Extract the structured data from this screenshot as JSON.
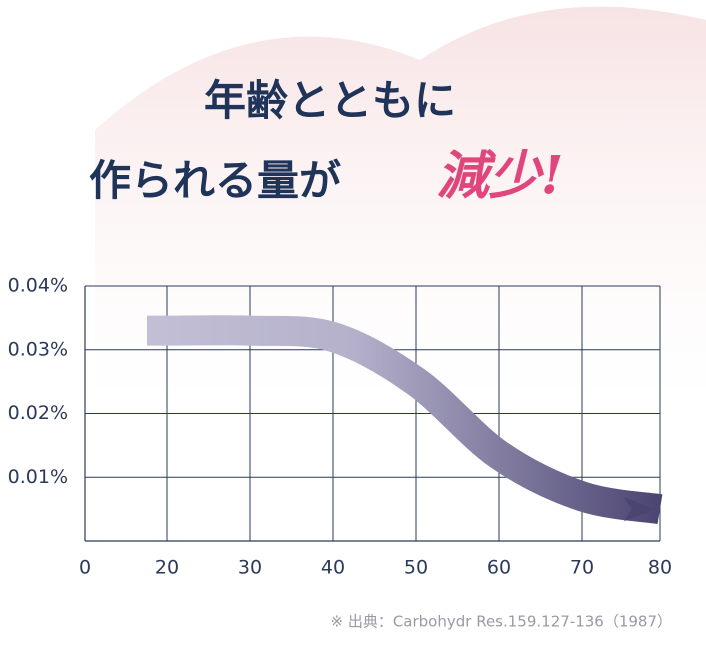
{
  "chart_data": {
    "type": "line",
    "title": "年齢とともに",
    "subtitle": "作られる量が",
    "title_emphasis": "減少!",
    "source": "※ 出典：Carbohydr Res.159.127-136（1987）",
    "categories": [
      "0",
      "20",
      "30",
      "40",
      "50",
      "60",
      "70",
      "80"
    ],
    "series": [
      {
        "name": "減少",
        "color": "#4b4572",
        "values": [
          null,
          0.033,
          0.033,
          0.032,
          0.025,
          0.0135,
          0.007,
          0.005
        ]
      }
    ],
    "ylim": [
      0,
      0.04
    ],
    "yticks": [
      {
        "value": 0.01,
        "label": "0.01%"
      },
      {
        "value": 0.02,
        "label": "0.02%"
      },
      {
        "value": 0.03,
        "label": "0.03%"
      },
      {
        "value": 0.04,
        "label": "0.04%"
      }
    ],
    "grid": true
  }
}
